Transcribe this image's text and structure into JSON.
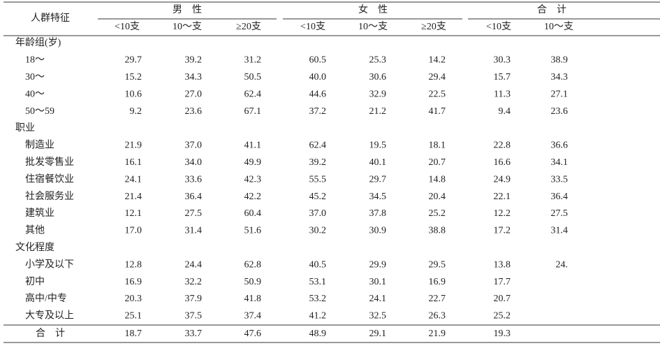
{
  "header": {
    "label": "人群特征",
    "groups": [
      {
        "title": "男　性",
        "columns": [
          "<10支",
          "10～支",
          "≥20支"
        ]
      },
      {
        "title": "女　性",
        "columns": [
          "<10支",
          "10～支",
          "≥20支"
        ]
      },
      {
        "title": "合　计",
        "columns": [
          "<10支",
          "10～支"
        ]
      }
    ]
  },
  "sections": [
    {
      "title": "年龄组(岁)",
      "rows": [
        {
          "label": "18～",
          "values": [
            "29.7",
            "39.2",
            "31.2",
            "60.5",
            "25.3",
            "14.2",
            "30.3",
            "38.9"
          ]
        },
        {
          "label": "30～",
          "values": [
            "15.2",
            "34.3",
            "50.5",
            "40.0",
            "30.6",
            "29.4",
            "15.7",
            "34.3"
          ]
        },
        {
          "label": "40～",
          "values": [
            "10.6",
            "27.0",
            "62.4",
            "44.6",
            "32.9",
            "22.5",
            "11.3",
            "27.1"
          ]
        },
        {
          "label": "50～59",
          "values": [
            "9.2",
            "23.6",
            "67.1",
            "37.2",
            "21.2",
            "41.7",
            "9.4",
            "23.6"
          ]
        }
      ]
    },
    {
      "title": "职业",
      "rows": [
        {
          "label": "制造业",
          "values": [
            "21.9",
            "37.0",
            "41.1",
            "62.4",
            "19.5",
            "18.1",
            "22.8",
            "36.6"
          ]
        },
        {
          "label": "批发零售业",
          "values": [
            "16.1",
            "34.0",
            "49.9",
            "39.2",
            "40.1",
            "20.7",
            "16.6",
            "34.1"
          ]
        },
        {
          "label": "住宿餐饮业",
          "values": [
            "24.1",
            "33.6",
            "42.3",
            "55.5",
            "29.7",
            "14.8",
            "24.9",
            "33.5"
          ]
        },
        {
          "label": "社会服务业",
          "values": [
            "21.4",
            "36.4",
            "42.2",
            "45.2",
            "34.5",
            "20.4",
            "22.1",
            "36.4"
          ]
        },
        {
          "label": "建筑业",
          "values": [
            "12.1",
            "27.5",
            "60.4",
            "37.0",
            "37.8",
            "25.2",
            "12.2",
            "27.5"
          ]
        },
        {
          "label": "其他",
          "values": [
            "17.0",
            "31.4",
            "51.6",
            "30.2",
            "30.9",
            "38.8",
            "17.2",
            "31.4"
          ]
        }
      ]
    },
    {
      "title": "文化程度",
      "rows": [
        {
          "label": "小学及以下",
          "values": [
            "12.8",
            "24.4",
            "62.8",
            "40.5",
            "29.9",
            "29.5",
            "13.8",
            "24."
          ]
        },
        {
          "label": "初中",
          "values": [
            "16.9",
            "32.2",
            "50.9",
            "53.1",
            "30.1",
            "16.9",
            "17.7",
            null
          ]
        },
        {
          "label": "高中/中专",
          "values": [
            "20.3",
            "37.9",
            "41.8",
            "53.2",
            "24.1",
            "22.7",
            "20.7",
            null
          ]
        },
        {
          "label": "大专及以上",
          "values": [
            "25.1",
            "37.5",
            "37.4",
            "41.2",
            "32.5",
            "26.3",
            "25.2",
            null
          ]
        }
      ]
    }
  ],
  "total": {
    "label": "合　计",
    "values": [
      "18.7",
      "33.7",
      "47.6",
      "48.9",
      "29.1",
      "21.9",
      "19.3",
      null
    ]
  }
}
